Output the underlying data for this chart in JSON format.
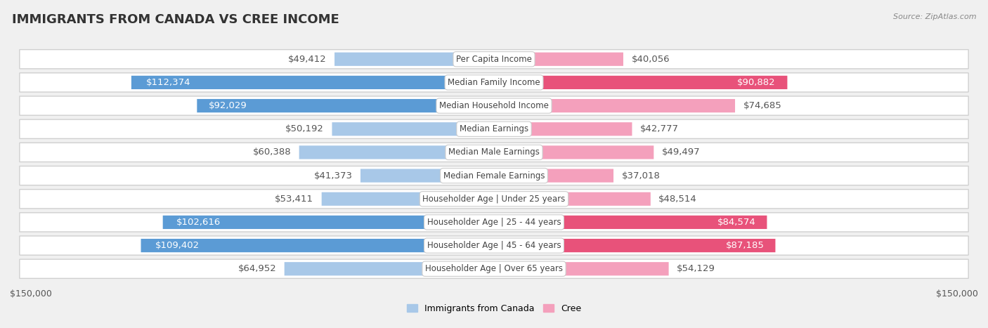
{
  "title": "IMMIGRANTS FROM CANADA VS CREE INCOME",
  "source": "Source: ZipAtlas.com",
  "categories": [
    "Per Capita Income",
    "Median Family Income",
    "Median Household Income",
    "Median Earnings",
    "Median Male Earnings",
    "Median Female Earnings",
    "Householder Age | Under 25 years",
    "Householder Age | 25 - 44 years",
    "Householder Age | 45 - 64 years",
    "Householder Age | Over 65 years"
  ],
  "canada_values": [
    49412,
    112374,
    92029,
    50192,
    60388,
    41373,
    53411,
    102616,
    109402,
    64952
  ],
  "cree_values": [
    40056,
    90882,
    74685,
    42777,
    49497,
    37018,
    48514,
    84574,
    87185,
    54129
  ],
  "canada_color_light": "#a8c8e8",
  "canada_color_dark": "#5b9bd5",
  "cree_color_light": "#f4a0bc",
  "cree_color_dark": "#e8527a",
  "canada_label": "Immigrants from Canada",
  "cree_label": "Cree",
  "axis_max": 150000,
  "bar_height": 0.58,
  "background_color": "#f0f0f0",
  "row_bg_color": "#ffffff",
  "row_border_color": "#d0d0d0",
  "value_fontsize": 9.5,
  "category_fontsize": 8.5,
  "title_fontsize": 13,
  "x_label_left": "$150,000",
  "x_label_right": "$150,000",
  "inside_label_threshold": 75000,
  "title_color": "#333333",
  "source_color": "#888888",
  "value_outside_color": "#555555",
  "value_inside_color": "#ffffff"
}
